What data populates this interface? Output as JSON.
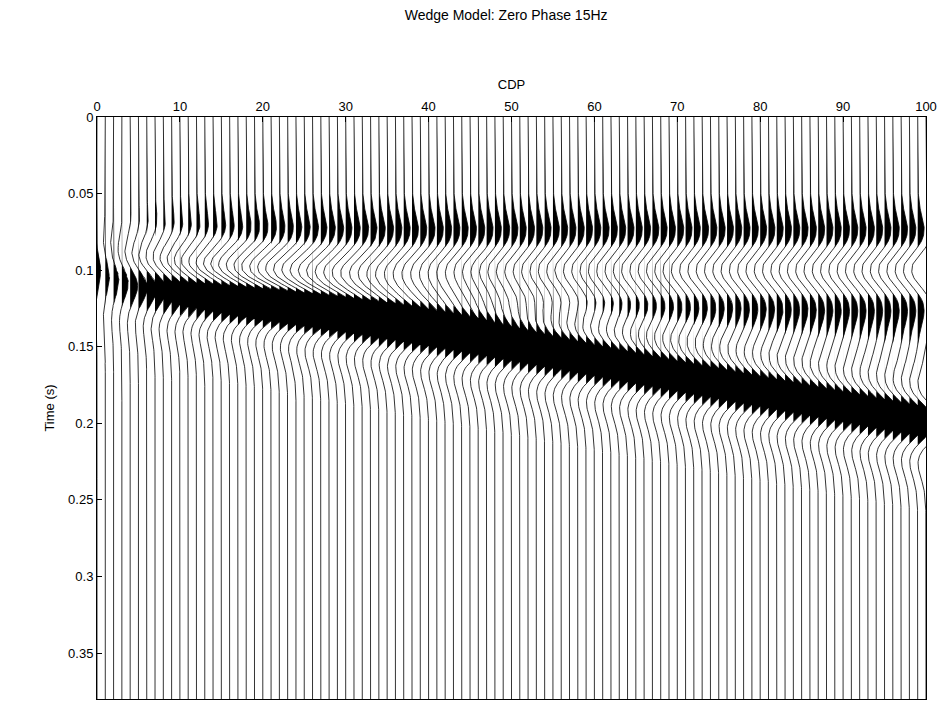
{
  "chart_data": {
    "type": "wiggle",
    "title": "Wedge Model: Zero Phase 15Hz",
    "x_label": "CDP",
    "y_label": "Time (s)",
    "xlim": [
      0,
      100
    ],
    "xticks": [
      0,
      10,
      20,
      30,
      40,
      50,
      60,
      70,
      80,
      90,
      100
    ],
    "ylim": [
      0,
      0.38
    ],
    "yticks": [
      0,
      0.05,
      0.1,
      0.15,
      0.2,
      0.25,
      0.3,
      0.35
    ],
    "grid": false,
    "color": "#000000",
    "x": [
      0,
      1,
      2,
      3,
      4,
      5,
      6,
      7,
      8,
      9,
      10,
      11,
      12,
      13,
      14,
      15,
      16,
      17,
      18,
      19,
      20,
      21,
      22,
      23,
      24,
      25,
      26,
      27,
      28,
      29,
      30,
      31,
      32,
      33,
      34,
      35,
      36,
      37,
      38,
      39,
      40,
      41,
      42,
      43,
      44,
      45,
      46,
      47,
      48,
      49,
      50,
      51,
      52,
      53,
      54,
      55,
      56,
      57,
      58,
      59,
      60,
      61,
      62,
      63,
      64,
      65,
      66,
      67,
      68,
      69,
      70,
      71,
      72,
      73,
      74,
      75,
      76,
      77,
      78,
      79,
      80,
      81,
      82,
      83,
      84,
      85,
      86,
      87,
      88,
      89,
      90,
      91,
      92,
      93,
      94,
      95,
      96,
      97,
      98,
      99,
      100
    ],
    "reflectors": [
      {
        "amplitude": -0.8,
        "times": [
          0.1,
          0.1,
          0.1,
          0.1,
          0.1,
          0.1,
          0.1,
          0.1,
          0.1,
          0.1,
          0.1,
          0.1,
          0.1,
          0.1,
          0.1,
          0.1,
          0.1,
          0.1,
          0.1,
          0.1,
          0.1,
          0.1,
          0.1,
          0.1,
          0.1,
          0.1,
          0.1,
          0.1,
          0.1,
          0.1,
          0.1,
          0.1,
          0.1,
          0.1,
          0.1,
          0.1,
          0.1,
          0.1,
          0.1,
          0.1,
          0.1,
          0.1,
          0.1,
          0.1,
          0.1,
          0.1,
          0.1,
          0.1,
          0.1,
          0.1,
          0.1,
          0.1,
          0.1,
          0.1,
          0.1,
          0.1,
          0.1,
          0.1,
          0.1,
          0.1,
          0.1,
          0.1,
          0.1,
          0.1,
          0.1,
          0.1,
          0.1,
          0.1,
          0.1,
          0.1,
          0.1,
          0.1,
          0.1,
          0.1,
          0.1,
          0.1,
          0.1,
          0.1,
          0.1,
          0.1,
          0.1,
          0.1,
          0.1,
          0.1,
          0.1,
          0.1,
          0.1,
          0.1,
          0.1,
          0.1,
          0.1,
          0.1,
          0.1,
          0.1,
          0.1,
          0.1,
          0.1,
          0.1,
          0.1,
          0.1,
          0.1
        ]
      },
      {
        "amplitude": 1.0,
        "times": [
          0.1,
          0.101,
          0.102,
          0.103,
          0.104,
          0.105,
          0.106,
          0.107,
          0.108,
          0.109,
          0.11,
          0.111,
          0.112,
          0.113,
          0.114,
          0.115,
          0.116,
          0.117,
          0.118,
          0.119,
          0.12,
          0.121,
          0.122,
          0.123,
          0.124,
          0.125,
          0.126,
          0.127,
          0.128,
          0.129,
          0.13,
          0.131,
          0.132,
          0.133,
          0.134,
          0.135,
          0.136,
          0.137,
          0.138,
          0.139,
          0.14,
          0.141,
          0.142,
          0.143,
          0.144,
          0.145,
          0.146,
          0.147,
          0.148,
          0.149,
          0.15,
          0.151,
          0.152,
          0.153,
          0.154,
          0.155,
          0.156,
          0.157,
          0.158,
          0.159,
          0.16,
          0.161,
          0.162,
          0.163,
          0.164,
          0.165,
          0.166,
          0.167,
          0.168,
          0.169,
          0.17,
          0.171,
          0.172,
          0.173,
          0.174,
          0.175,
          0.176,
          0.177,
          0.178,
          0.179,
          0.18,
          0.181,
          0.182,
          0.183,
          0.184,
          0.185,
          0.186,
          0.187,
          0.188,
          0.189,
          0.19,
          0.191,
          0.192,
          0.193,
          0.194,
          0.195,
          0.196,
          0.197,
          0.198,
          0.199,
          0.2
        ]
      }
    ],
    "wavelet": {
      "t": [
        -0.06,
        -0.056,
        -0.052,
        -0.048,
        -0.044,
        -0.04,
        -0.036,
        -0.032,
        -0.028,
        -0.024,
        -0.02,
        -0.016,
        -0.012,
        -0.008,
        -0.004,
        0,
        0.004,
        0.008,
        0.012,
        0.016,
        0.02,
        0.024,
        0.028,
        0.032,
        0.036,
        0.04,
        0.044,
        0.048,
        0.052,
        0.056,
        0.06
      ],
      "values": [
        -0.01,
        -0.01,
        -0.03,
        -0.06,
        -0.1,
        -0.17,
        -0.27,
        -0.37,
        -0.44,
        -0.43,
        -0.32,
        -0.08,
        0.26,
        0.62,
        0.9,
        1,
        0.9,
        0.62,
        0.26,
        -0.08,
        -0.32,
        -0.43,
        -0.44,
        -0.37,
        -0.27,
        -0.17,
        -0.1,
        -0.06,
        -0.03,
        -0.01,
        -0.01
      ]
    }
  }
}
